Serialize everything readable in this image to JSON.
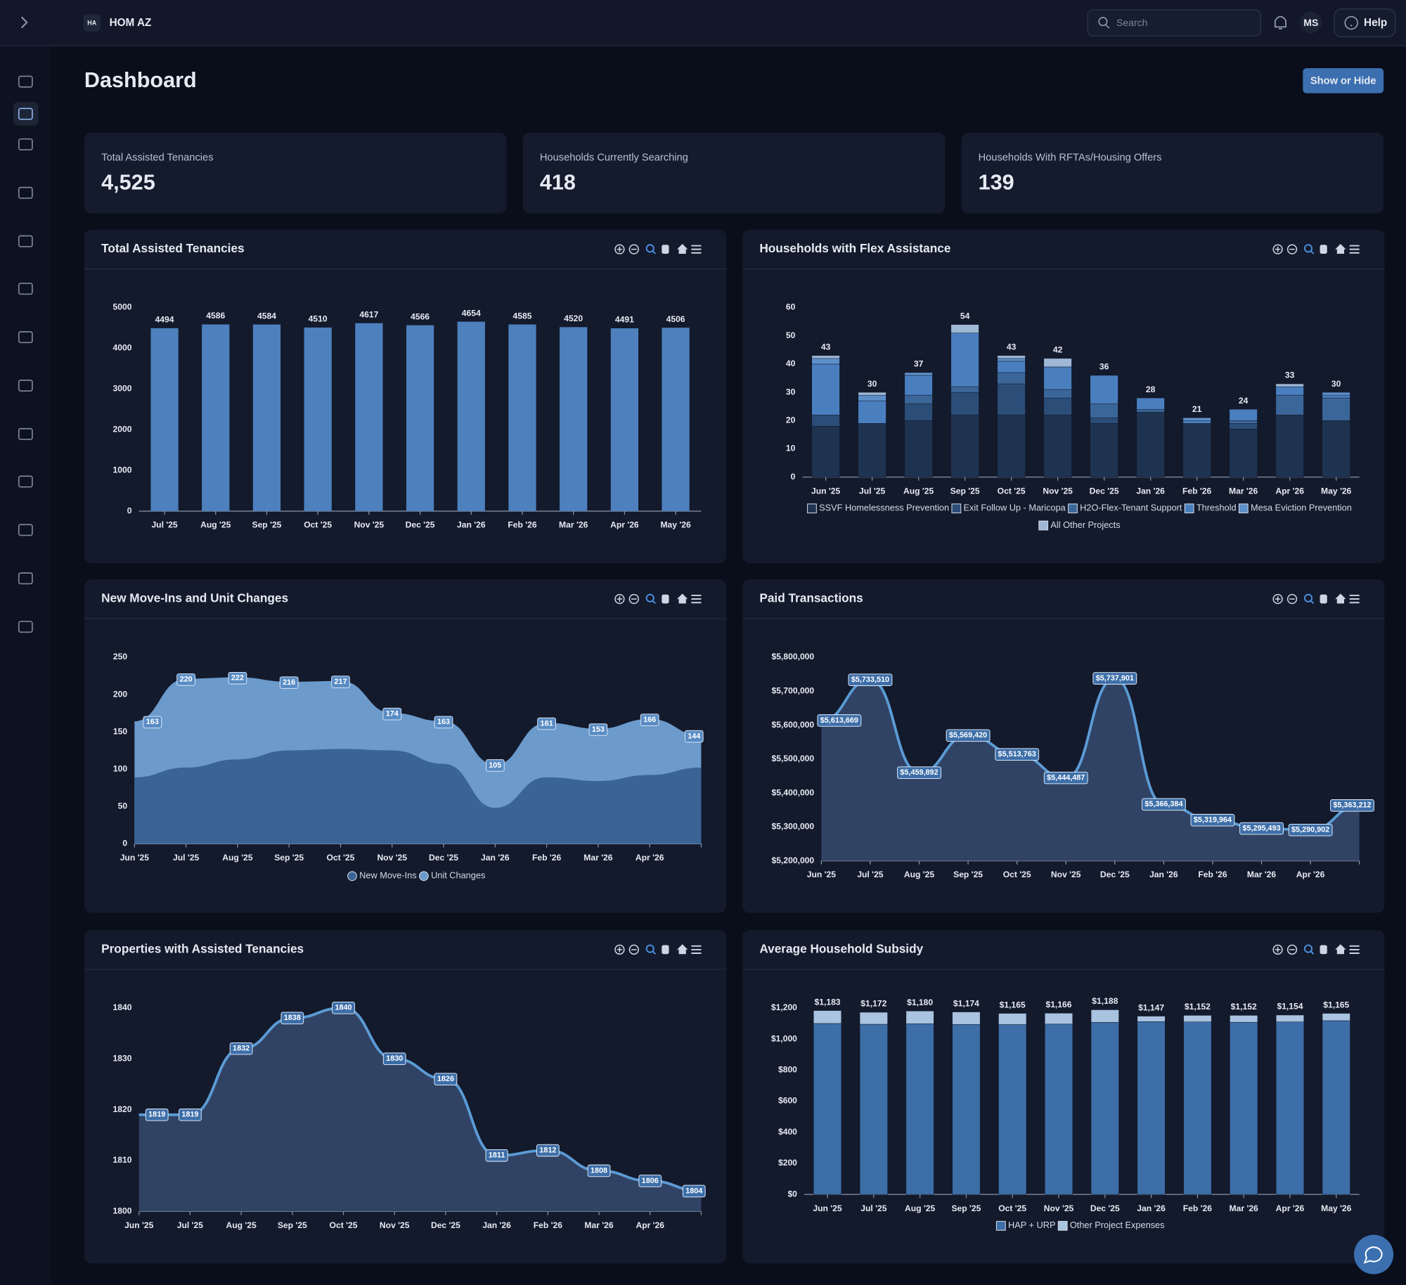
{
  "topbar": {
    "org_badge": "HA",
    "org_name": "HOM AZ",
    "search_placeholder": "Search",
    "user_initials": "MS",
    "help": "Help"
  },
  "page": {
    "title": "Dashboard",
    "toggle_button": "Show or Hide"
  },
  "kpis": [
    {
      "label": "Total Assisted Tenancies",
      "value": "4,525"
    },
    {
      "label": "Households Currently Searching",
      "value": "418"
    },
    {
      "label": "Households With RFTAs/Housing Offers",
      "value": "139"
    }
  ],
  "chart_data": [
    {
      "type": "bar",
      "title": "Total Assisted Tenancies",
      "categories": [
        "Jul '25",
        "Aug '25",
        "Sep '25",
        "Oct '25",
        "Nov '25",
        "Dec '25",
        "Jan '26",
        "Feb '26",
        "Mar '26",
        "Apr '26",
        "May '26"
      ],
      "values": [
        4494,
        4586,
        4584,
        4510,
        4617,
        4566,
        4654,
        4585,
        4520,
        4491,
        4506
      ],
      "color": "#4d80bd",
      "ylim": [
        0,
        5000
      ],
      "yticks": [
        0,
        1000,
        2000,
        3000,
        4000,
        5000
      ]
    },
    {
      "type": "stacked_bar",
      "title": "Households with Flex Assistance",
      "categories": [
        "Jun '25",
        "Jul '25",
        "Aug '25",
        "Sep '25",
        "Oct '25",
        "Nov '25",
        "Dec '25",
        "Jan '26",
        "Feb '26",
        "Mar '26",
        "Apr '26",
        "May '26"
      ],
      "series": [
        {
          "name": "SSVF Homelessness Prevention",
          "color": "#1e3350",
          "values": [
            18,
            19,
            20,
            22,
            22,
            22,
            19,
            23,
            19,
            17,
            22,
            20
          ]
        },
        {
          "name": "Exit Follow Up - Maricopa",
          "color": "#2b4d78",
          "values": [
            4,
            0,
            6,
            8,
            11,
            6,
            2,
            0,
            0,
            2,
            0,
            0
          ]
        },
        {
          "name": "H2O-Flex-Tenant Support",
          "color": "#3b6699",
          "values": [
            0,
            0,
            3,
            2,
            4,
            3,
            5,
            1,
            0,
            1,
            7,
            8
          ]
        },
        {
          "name": "Threshold",
          "color": "#4a7fbf",
          "values": [
            18,
            8,
            7,
            19,
            4,
            8,
            10,
            4,
            1,
            4,
            3,
            1
          ]
        },
        {
          "name": "Mesa Eviction Prevention",
          "color": "#5d8fc9",
          "values": [
            2,
            2,
            1,
            0,
            1,
            0,
            0,
            0,
            1,
            0,
            0,
            1
          ]
        },
        {
          "name": "All Other Projects",
          "color": "#9fb8d6",
          "values": [
            1,
            1,
            0,
            3,
            1,
            3,
            0,
            0,
            0,
            0,
            1,
            0
          ]
        }
      ],
      "totals": [
        43,
        30,
        37,
        54,
        43,
        42,
        36,
        28,
        21,
        24,
        33,
        30
      ],
      "ylim": [
        0,
        60
      ],
      "yticks": [
        0,
        10,
        20,
        30,
        40,
        50,
        60
      ],
      "legend": "bottom"
    },
    {
      "type": "area",
      "title": "New Move-Ins and Unit Changes",
      "categories": [
        "Jun '25",
        "Jul '25",
        "Aug '25",
        "Sep '25",
        "Oct '25",
        "Nov '25",
        "Dec '25",
        "Jan '26",
        "Feb '26",
        "Mar '26",
        "Apr '26",
        null
      ],
      "series": [
        {
          "name": "New Move-Ins",
          "color": "#3a6494",
          "values": [
            88,
            101,
            112,
            124,
            126,
            124,
            106,
            47,
            88,
            83,
            91,
            101
          ]
        },
        {
          "name": "Unit Changes",
          "color": "#6b9acb",
          "labeled": true,
          "values": [
            163,
            220,
            222,
            216,
            217,
            174,
            163,
            105,
            161,
            153,
            166,
            144
          ]
        }
      ],
      "ylim": [
        0,
        250
      ],
      "yticks": [
        0,
        50,
        100,
        150,
        200,
        250
      ],
      "legend": "bottom"
    },
    {
      "type": "area",
      "title": "Paid Transactions",
      "categories": [
        "Jun '25",
        "Jul '25",
        "Aug '25",
        "Sep '25",
        "Oct '25",
        "Nov '25",
        "Dec '25",
        "Jan '26",
        "Feb '26",
        "Mar '26",
        "Apr '26",
        null
      ],
      "values": [
        5613669,
        5733510,
        5459892,
        5569420,
        5513763,
        5444487,
        5737901,
        5366384,
        5319964,
        5295493,
        5290902,
        5363212
      ],
      "value_labels": [
        "$5,613,669",
        "$5,733,510",
        "$5,459,892",
        "$5,569,420",
        "$5,513,763",
        "$5,444,487",
        "$5,737,901",
        "$5,366,384",
        "$5,319,964",
        "$5,295,493",
        "$5,290,902",
        "$5,363,212"
      ],
      "color": "#5b9bd5",
      "ylim": [
        5200000,
        5800000
      ],
      "yticks": [
        {
          "value": 5200000,
          "label": "$5,200,000"
        },
        {
          "value": 5300000,
          "label": "$5,300,000"
        },
        {
          "value": 5400000,
          "label": "$5,400,000"
        },
        {
          "value": 5500000,
          "label": "$5,500,000"
        },
        {
          "value": 5600000,
          "label": "$5,600,000"
        },
        {
          "value": 5700000,
          "label": "$5,700,000"
        },
        {
          "value": 5800000,
          "label": "$5,800,000"
        }
      ]
    },
    {
      "type": "area",
      "title": "Properties with Assisted Tenancies",
      "categories": [
        "Jun '25",
        "Jul '25",
        "Aug '25",
        "Sep '25",
        "Oct '25",
        "Nov '25",
        "Dec '25",
        "Jan '26",
        "Feb '26",
        "Mar '26",
        "Apr '26",
        null
      ],
      "values": [
        1819,
        1819,
        1832,
        1838,
        1840,
        1830,
        1826,
        1811,
        1812,
        1808,
        1806,
        1804
      ],
      "color": "#5b9bd5",
      "ylim": [
        1800,
        1840
      ],
      "yticks": [
        1800,
        1810,
        1820,
        1830,
        1840
      ]
    },
    {
      "type": "stacked_bar",
      "title": "Average Household Subsidy",
      "categories": [
        "Jun '25",
        "Jul '25",
        "Aug '25",
        "Sep '25",
        "Oct '25",
        "Nov '25",
        "Dec '25",
        "Jan '26",
        "Feb '26",
        "Mar '26",
        "Apr '26",
        "May '26"
      ],
      "series": [
        {
          "name": "HAP + URP",
          "color": "#3d6ea8",
          "values": [
            1100,
            1095,
            1098,
            1094,
            1093,
            1096,
            1107,
            1112,
            1110,
            1108,
            1110,
            1118
          ]
        },
        {
          "name": "Other Project Expenses",
          "color": "#a9c3e0",
          "values": [
            83,
            77,
            82,
            80,
            72,
            70,
            81,
            35,
            42,
            44,
            44,
            47
          ]
        }
      ],
      "total_labels": [
        "$1,183",
        "$1,172",
        "$1,180",
        "$1,174",
        "$1,165",
        "$1,166",
        "$1,188",
        "$1,147",
        "$1,152",
        "$1,152",
        "$1,154",
        "$1,165"
      ],
      "ylim": [
        0,
        1200
      ],
      "yticks": [
        {
          "value": 0,
          "label": "$0"
        },
        {
          "value": 200,
          "label": "$200"
        },
        {
          "value": 400,
          "label": "$400"
        },
        {
          "value": 600,
          "label": "$600"
        },
        {
          "value": 800,
          "label": "$800"
        },
        {
          "value": 1000,
          "label": "$1,000"
        },
        {
          "value": 1200,
          "label": "$1,200"
        }
      ],
      "legend": "bottom"
    }
  ]
}
